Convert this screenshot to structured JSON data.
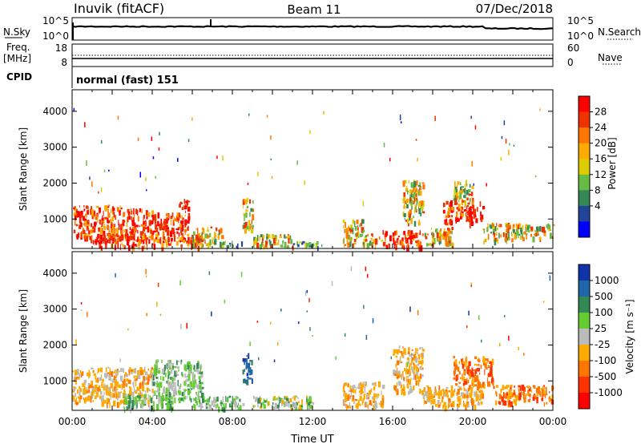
{
  "header": {
    "station": "Inuvik (fitACF)",
    "beam": "Beam 11",
    "date": "07/Dec/2018"
  },
  "strip_labels": {
    "nsky": "N.Sky",
    "nsearch": "N.Search",
    "freq": "Freq.",
    "freq_unit": "[MHz]",
    "nave": "Nave",
    "cpid": "CPID",
    "cpid_value": "normal (fast) 151",
    "nsky_ticks": [
      "10^5",
      "10^0"
    ],
    "nsearch_ticks": [
      "10^5",
      "10^0"
    ],
    "freq_ticks": [
      "18",
      "8"
    ],
    "nave_ticks": [
      "60",
      "0"
    ]
  },
  "chart_data": [
    {
      "type": "heatmap",
      "name": "power",
      "ylabel": "Slant Range [km]",
      "ylim": [
        180,
        4600
      ],
      "xlim": [
        0,
        24
      ],
      "y_ticks": [
        1000,
        2000,
        3000,
        4000
      ],
      "colorbar": {
        "label": "Power [dB]",
        "ticks": [
          "28",
          "24",
          "20",
          "16",
          "12",
          "8",
          "4"
        ],
        "colors": [
          "#ff0000",
          "#ee3300",
          "#ff7700",
          "#ffaa00",
          "#ddcc00",
          "#66bb44",
          "#338855",
          "#224499",
          "#0000ff"
        ]
      },
      "echo_regions": [
        {
          "t": [
            0.0,
            0.9
          ],
          "r": [
            500,
            1400
          ],
          "level": "high"
        },
        {
          "t": [
            0.9,
            2.5
          ],
          "r": [
            450,
            1400
          ],
          "level": "high"
        },
        {
          "t": [
            2.5,
            4.0
          ],
          "r": [
            500,
            1300
          ],
          "level": "high"
        },
        {
          "t": [
            4.0,
            5.5
          ],
          "r": [
            600,
            1200
          ],
          "level": "high"
        },
        {
          "t": [
            5.3,
            5.8
          ],
          "r": [
            700,
            1600
          ],
          "level": "high"
        },
        {
          "t": [
            1.0,
            6.5
          ],
          "r": [
            250,
            600
          ],
          "level": "high"
        },
        {
          "t": [
            6.0,
            7.5
          ],
          "r": [
            300,
            800
          ],
          "level": "mid"
        },
        {
          "t": [
            7.5,
            8.5
          ],
          "r": [
            250,
            400
          ],
          "level": "low"
        },
        {
          "t": [
            8.5,
            9.0
          ],
          "r": [
            700,
            1600
          ],
          "level": "mid"
        },
        {
          "t": [
            9.0,
            11.0
          ],
          "r": [
            250,
            600
          ],
          "level": "mid"
        },
        {
          "t": [
            11.0,
            12.5
          ],
          "r": [
            250,
            400
          ],
          "level": "low"
        },
        {
          "t": [
            13.5,
            14.5
          ],
          "r": [
            300,
            1000
          ],
          "level": "mid"
        },
        {
          "t": [
            14.5,
            15.5
          ],
          "r": [
            300,
            600
          ],
          "level": "mid"
        },
        {
          "t": [
            15.5,
            17.5
          ],
          "r": [
            250,
            700
          ],
          "level": "high"
        },
        {
          "t": [
            16.5,
            17.5
          ],
          "r": [
            900,
            2100
          ],
          "level": "mid"
        },
        {
          "t": [
            17.5,
            19.0
          ],
          "r": [
            300,
            800
          ],
          "level": "mid"
        },
        {
          "t": [
            18.5,
            20.5
          ],
          "r": [
            900,
            1600
          ],
          "level": "high"
        },
        {
          "t": [
            19.0,
            20.0
          ],
          "r": [
            1500,
            2100
          ],
          "level": "mid"
        },
        {
          "t": [
            20.5,
            22.0
          ],
          "r": [
            400,
            900
          ],
          "level": "mid"
        },
        {
          "t": [
            22.0,
            24.0
          ],
          "r": [
            500,
            900
          ],
          "level": "mid"
        }
      ]
    },
    {
      "type": "heatmap",
      "name": "velocity",
      "ylabel": "Slant Range [km]",
      "xlabel": "Time UT",
      "ylim": [
        180,
        4600
      ],
      "xlim": [
        0,
        24
      ],
      "y_ticks": [
        1000,
        2000,
        3000,
        4000
      ],
      "x_ticks": [
        "00:00",
        "04:00",
        "08:00",
        "12:00",
        "16:00",
        "20:00",
        "00:00"
      ],
      "colorbar": {
        "label": "Velocity [m s⁻¹]",
        "ticks": [
          "1000",
          "500",
          "100",
          "25",
          "-25",
          "-100",
          "-500",
          "-1000"
        ],
        "colors": [
          "#1133aa",
          "#2266aa",
          "#338855",
          "#66cc33",
          "#bbbbbb",
          "#ffaa00",
          "#ff7700",
          "#ff3300",
          "#ff0000"
        ]
      },
      "echo_regions": [
        {
          "t": [
            0.0,
            4.0
          ],
          "r": [
            400,
            1400
          ],
          "level": "negative"
        },
        {
          "t": [
            2.5,
            5.0
          ],
          "r": [
            250,
            700
          ],
          "level": "positive"
        },
        {
          "t": [
            4.0,
            6.5
          ],
          "r": [
            500,
            1600
          ],
          "level": "positive"
        },
        {
          "t": [
            6.0,
            8.5
          ],
          "r": [
            250,
            600
          ],
          "level": "positive"
        },
        {
          "t": [
            8.5,
            9.0
          ],
          "r": [
            1000,
            1800
          ],
          "level": "strong-positive"
        },
        {
          "t": [
            9.0,
            12.0
          ],
          "r": [
            250,
            600
          ],
          "level": "mixed"
        },
        {
          "t": [
            13.5,
            15.5
          ],
          "r": [
            300,
            1000
          ],
          "level": "negative"
        },
        {
          "t": [
            16.0,
            17.5
          ],
          "r": [
            700,
            2000
          ],
          "level": "negative"
        },
        {
          "t": [
            17.5,
            20.5
          ],
          "r": [
            300,
            900
          ],
          "level": "negative"
        },
        {
          "t": [
            19.0,
            21.0
          ],
          "r": [
            900,
            1700
          ],
          "level": "strong-negative"
        },
        {
          "t": [
            21.0,
            24.0
          ],
          "r": [
            400,
            900
          ],
          "level": "strong-negative"
        }
      ]
    }
  ]
}
